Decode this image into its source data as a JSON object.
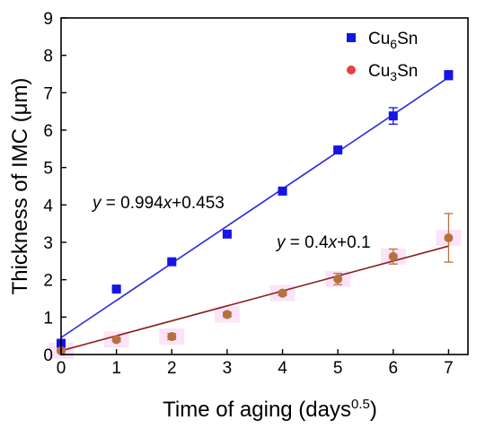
{
  "chart_data": {
    "type": "scatter",
    "xlabel": "Time of aging (days",
    "xlabel_sup": "0.5",
    "xlabel_tail": ")",
    "ylabel": "Thickness of IMC (μm)",
    "xlim": [
      0,
      7.35
    ],
    "ylim": [
      0,
      9
    ],
    "x_ticks": [
      "0",
      "1",
      "2",
      "3",
      "4",
      "5",
      "6",
      "7"
    ],
    "y_ticks": [
      "0",
      "1",
      "2",
      "3",
      "4",
      "5",
      "6",
      "7",
      "8",
      "9"
    ],
    "grid": false,
    "legend_position": "top-right",
    "series": [
      {
        "name": "Cu6Sn",
        "legend_base": "Cu",
        "legend_sub": "6",
        "legend_tail": "Sn",
        "marker": "square",
        "color": "#1515e6",
        "line_color": "#2a2ae0",
        "x": [
          0,
          1,
          2,
          3,
          4,
          5,
          6,
          7
        ],
        "y": [
          0.3,
          1.75,
          2.48,
          3.22,
          4.37,
          5.47,
          6.38,
          7.47
        ],
        "err": [
          0.02,
          0.02,
          0.03,
          0.03,
          0.07,
          0.04,
          0.22,
          0.12
        ],
        "fit": {
          "slope": 0.994,
          "intercept": 0.453,
          "eq_prefix": "y",
          "eq_mid": " = 0.994",
          "eq_var": "x",
          "eq_tail": "+0.453"
        }
      },
      {
        "name": "Cu3Sn",
        "legend_base": "Cu",
        "legend_sub": "3",
        "legend_tail": "Sn",
        "marker": "circle",
        "color": "#b8703c",
        "legend_color": "#e8413f",
        "line_color": "#8b1f1f",
        "x": [
          0,
          1,
          2,
          3,
          4,
          5,
          6,
          7
        ],
        "y": [
          0.1,
          0.4,
          0.48,
          1.07,
          1.64,
          2.02,
          2.62,
          3.12
        ],
        "err": [
          0.03,
          0.05,
          0.08,
          0.06,
          0.06,
          0.15,
          0.2,
          0.65
        ],
        "fit": {
          "slope": 0.4,
          "intercept": 0.1,
          "eq_prefix": "y",
          "eq_mid": " = 0.4",
          "eq_var": "x",
          "eq_tail": "+0.1"
        }
      }
    ]
  }
}
